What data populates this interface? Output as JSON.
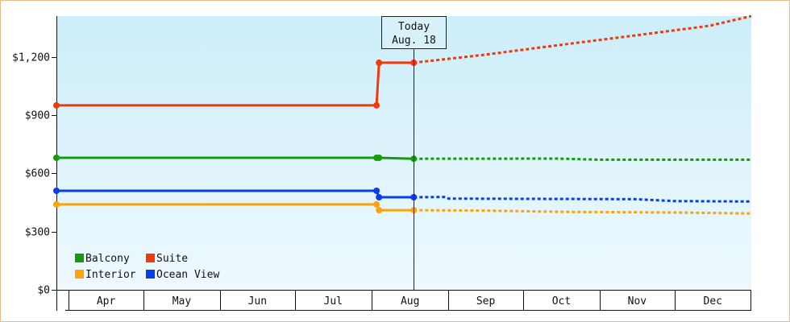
{
  "chart_data": {
    "type": "line",
    "y_ticks": [
      "$0",
      "$300",
      "$600",
      "$900",
      "$1,200"
    ],
    "y_tick_values": [
      0,
      300,
      600,
      900,
      1200
    ],
    "ylim": [
      0,
      1410
    ],
    "x_months": [
      "Apr",
      "May",
      "Jun",
      "Jul",
      "Aug",
      "Sep",
      "Oct",
      "Nov",
      "Dec"
    ],
    "xlim": [
      "2023-03-27",
      "2024-01-01"
    ],
    "today": {
      "line1": "Today",
      "line2": "Aug. 18",
      "date": "2023-08-18"
    },
    "legend_position": "bottom-left",
    "grid": false,
    "series": [
      {
        "name": "Suite",
        "color": "#ee3a0f",
        "actual": [
          [
            "2023-03-27",
            950
          ],
          [
            "2023-08-03",
            950
          ],
          [
            "2023-08-04",
            1170
          ],
          [
            "2023-08-18",
            1170
          ]
        ],
        "markers": [
          "2023-03-27",
          "2023-08-03",
          "2023-08-04",
          "2023-08-18"
        ],
        "forecast": [
          [
            "2023-08-18",
            1170
          ],
          [
            "2023-09-15",
            1210
          ],
          [
            "2023-10-15",
            1260
          ],
          [
            "2023-11-15",
            1310
          ],
          [
            "2023-12-15",
            1360
          ],
          [
            "2024-01-01",
            1410
          ]
        ]
      },
      {
        "name": "Balcony",
        "color": "#169c0a",
        "actual": [
          [
            "2023-03-27",
            680
          ],
          [
            "2023-08-04",
            680
          ],
          [
            "2023-08-18",
            675
          ]
        ],
        "markers": [
          "2023-03-27",
          "2023-08-03",
          "2023-08-04",
          "2023-08-18"
        ],
        "forecast": [
          [
            "2023-08-18",
            675
          ],
          [
            "2023-10-15",
            676
          ],
          [
            "2023-11-01",
            670
          ],
          [
            "2024-01-01",
            670
          ]
        ]
      },
      {
        "name": "Ocean View",
        "color": "#0b3de8",
        "actual": [
          [
            "2023-03-27",
            510
          ],
          [
            "2023-08-03",
            510
          ],
          [
            "2023-08-04",
            477
          ],
          [
            "2023-08-18",
            477
          ]
        ],
        "markers": [
          "2023-03-27",
          "2023-08-03",
          "2023-08-04",
          "2023-08-18"
        ],
        "forecast": [
          [
            "2023-08-18",
            477
          ],
          [
            "2023-08-31",
            478
          ],
          [
            "2023-09-01",
            470
          ],
          [
            "2023-11-15",
            467
          ],
          [
            "2023-12-01",
            457
          ],
          [
            "2024-01-01",
            455
          ]
        ]
      },
      {
        "name": "Interior",
        "color": "#f9a30f",
        "actual": [
          [
            "2023-03-27",
            440
          ],
          [
            "2023-08-03",
            440
          ],
          [
            "2023-08-04",
            410
          ],
          [
            "2023-08-18",
            410
          ]
        ],
        "markers": [
          "2023-03-27",
          "2023-08-03",
          "2023-08-04",
          "2023-08-18"
        ],
        "forecast": [
          [
            "2023-08-18",
            410
          ],
          [
            "2023-09-15",
            408
          ],
          [
            "2023-10-15",
            402
          ],
          [
            "2023-12-01",
            398
          ],
          [
            "2024-01-01",
            393
          ]
        ]
      }
    ],
    "legend_order": [
      "Balcony",
      "Suite",
      "Interior",
      "Ocean View"
    ]
  }
}
